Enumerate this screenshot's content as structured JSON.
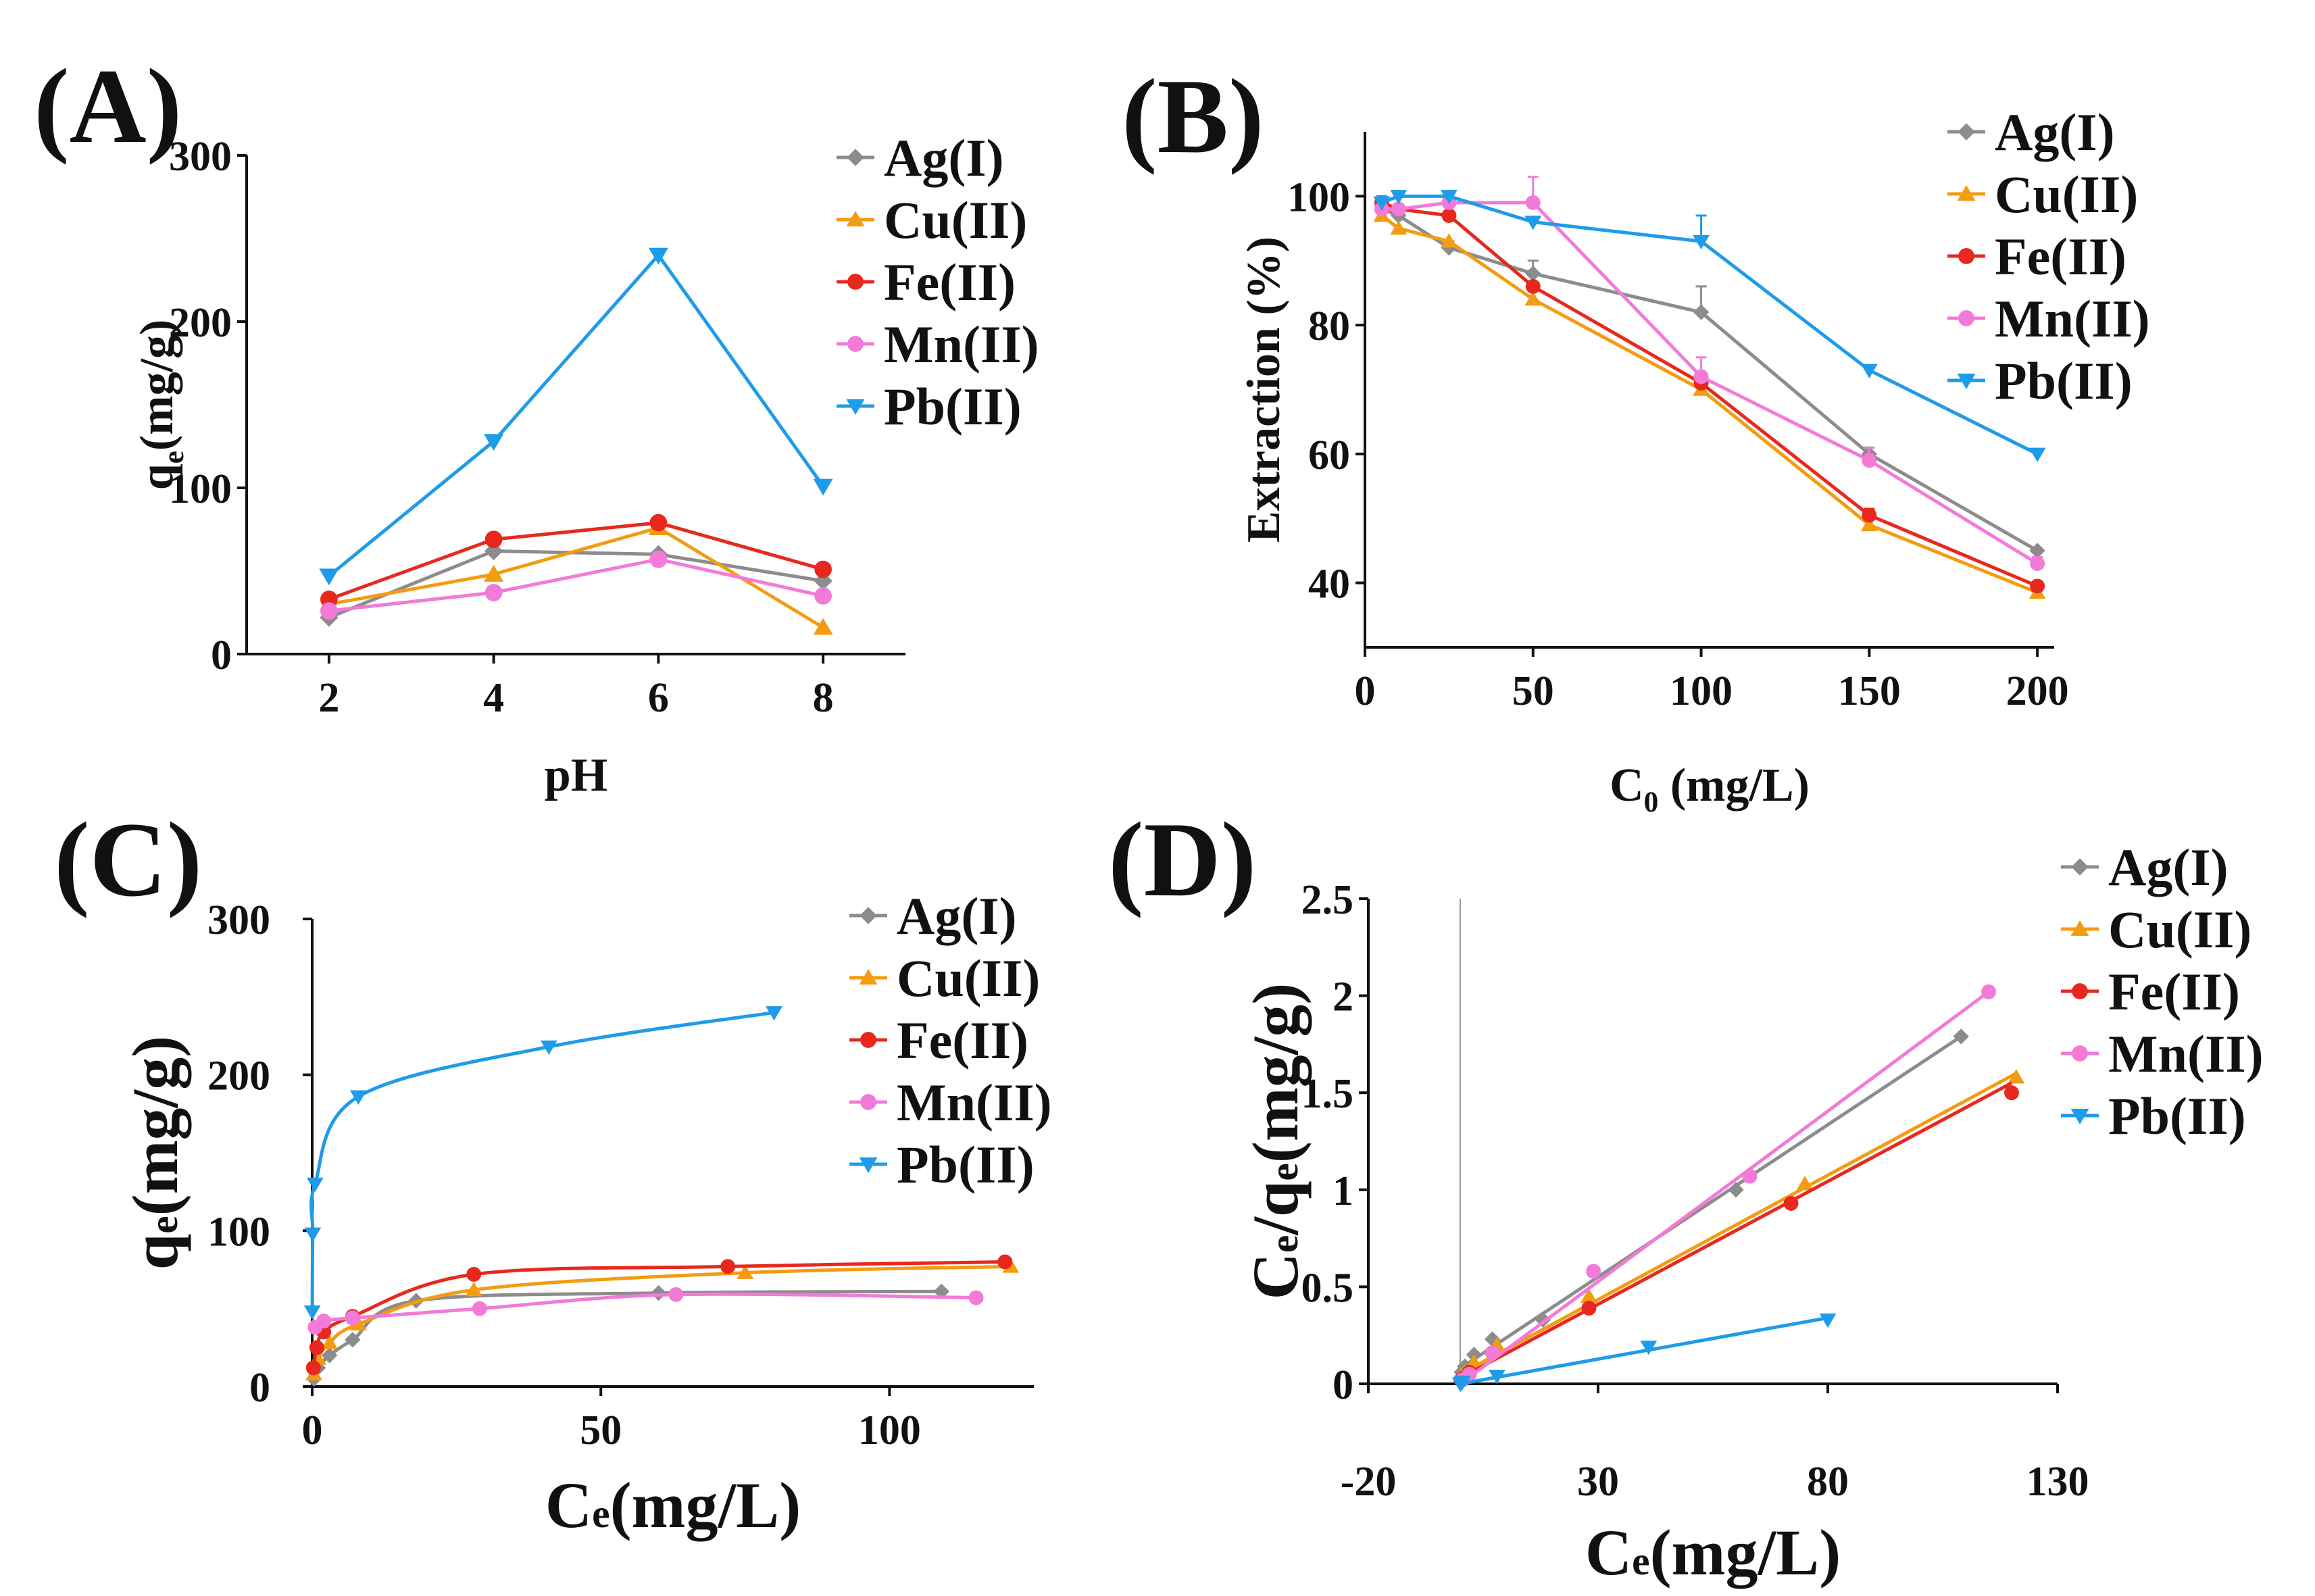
{
  "colors": {
    "Ag(I)": "#8c8c8c",
    "Cu(II)": "#f39c12",
    "Fe(II)": "#e8281e",
    "Mn(II)": "#f27ad8",
    "Pb(II)": "#1e9be9"
  },
  "chart_data": [
    {
      "id": "A",
      "panel_label": "(A)",
      "type": "line",
      "xlabel": "pH",
      "ylabel_main": "q",
      "ylabel_sub": "e",
      "ylabel_tail": "(mg/g)",
      "xlim": [
        1,
        9
      ],
      "ylim": [
        0,
        300
      ],
      "xticks": [
        2,
        4,
        6,
        8
      ],
      "yticks": [
        0,
        100,
        200,
        300
      ],
      "x": [
        2,
        4,
        6,
        8
      ],
      "legend": [
        "Ag(I)",
        "Cu(II)",
        "Fe(II)",
        "Mn(II)",
        "Pb(II)"
      ],
      "series": [
        {
          "name": "Ag(I)",
          "values": [
            22,
            62,
            60,
            44
          ]
        },
        {
          "name": "Cu(II)",
          "values": [
            30,
            48,
            76,
            16
          ]
        },
        {
          "name": "Fe(II)",
          "values": [
            33,
            69,
            79,
            51
          ]
        },
        {
          "name": "Mn(II)",
          "values": [
            26,
            37,
            57,
            35
          ]
        },
        {
          "name": "Pb(II)",
          "values": [
            47,
            128,
            240,
            101
          ]
        }
      ]
    },
    {
      "id": "B",
      "panel_label": "(B)",
      "type": "line",
      "xlabel_main": "C",
      "xlabel_sub": "0",
      "xlabel_tail": " (mg/L)",
      "ylabel": "Extraction (%)",
      "xlim": [
        0,
        205
      ],
      "ylim": [
        30,
        110
      ],
      "xticks": [
        0,
        50,
        100,
        150,
        200
      ],
      "yticks": [
        40,
        60,
        80,
        100
      ],
      "legend": [
        "Ag(I)",
        "Cu(II)",
        "Fe(II)",
        "Mn(II)",
        "Pb(II)"
      ],
      "series": [
        {
          "name": "Ag(I)",
          "x": [
            5,
            10,
            25,
            50,
            100,
            150,
            200
          ],
          "values": [
            98,
            97,
            92,
            88,
            82,
            60,
            45
          ],
          "err": [
            1,
            1,
            1,
            2,
            4,
            1,
            0
          ]
        },
        {
          "name": "Cu(II)",
          "x": [
            5,
            10,
            25,
            50,
            100,
            150,
            200
          ],
          "values": [
            97,
            95,
            93,
            84,
            70,
            49,
            38.5
          ],
          "err": [
            0,
            0,
            0,
            0,
            0,
            0,
            0
          ]
        },
        {
          "name": "Fe(II)",
          "x": [
            5,
            10,
            25,
            50,
            100,
            150,
            200
          ],
          "values": [
            99,
            98,
            97,
            86,
            71,
            50.5,
            39.5
          ],
          "err": [
            0,
            0,
            0,
            0,
            0,
            1,
            0
          ]
        },
        {
          "name": "Mn(II)",
          "x": [
            5,
            10,
            25,
            50,
            100,
            150,
            200
          ],
          "values": [
            98,
            98,
            99,
            99,
            72,
            59,
            43
          ],
          "err": [
            2,
            0,
            0,
            4,
            3,
            2,
            1
          ]
        },
        {
          "name": "Pb(II)",
          "x": [
            5,
            10,
            25,
            50,
            100,
            150,
            200
          ],
          "values": [
            99,
            100,
            100,
            96,
            93,
            73,
            60
          ],
          "err": [
            1,
            0,
            0,
            0,
            4,
            0,
            0
          ]
        }
      ]
    },
    {
      "id": "C",
      "panel_label": "(C)",
      "type": "line",
      "xlabel_main": "C",
      "xlabel_sub": "e",
      "xlabel_tail": "(mg/L)",
      "ylabel_main": "q",
      "ylabel_sub": "e",
      "ylabel_tail": "(mg/g)",
      "xlim": [
        0,
        125
      ],
      "ylim": [
        0,
        300
      ],
      "xticks": [
        0,
        50,
        100
      ],
      "yticks": [
        0,
        100,
        200,
        300
      ],
      "legend": [
        "Ag(I)",
        "Cu(II)",
        "Fe(II)",
        "Mn(II)",
        "Pb(II)"
      ],
      "series": [
        {
          "name": "Ag(I)",
          "x": [
            0.3,
            1,
            3,
            7,
            18,
            60,
            109
          ],
          "values": [
            5,
            12,
            20,
            30,
            55,
            60,
            61
          ]
        },
        {
          "name": "Cu(II)",
          "x": [
            0.3,
            1,
            3,
            8,
            28,
            75,
            121
          ],
          "values": [
            8,
            18,
            28,
            40,
            62,
            73,
            77
          ]
        },
        {
          "name": "Fe(II)",
          "x": [
            0.2,
            0.8,
            2,
            7,
            28,
            72,
            120
          ],
          "values": [
            12,
            25,
            35,
            45,
            72,
            77,
            80
          ]
        },
        {
          "name": "Mn(II)",
          "x": [
            0.5,
            2,
            7,
            29,
            63,
            115
          ],
          "values": [
            38,
            42,
            44,
            50,
            59,
            57
          ]
        },
        {
          "name": "Pb(II)",
          "x": [
            0.02,
            0.1,
            0.5,
            8,
            41,
            80
          ],
          "values": [
            48,
            98,
            130,
            186,
            218,
            240
          ]
        }
      ]
    },
    {
      "id": "D",
      "panel_label": "(D)",
      "type": "scatter",
      "xlabel_main": "C",
      "xlabel_sub": "e",
      "xlabel_tail": "(mg/L)",
      "ylabel_main1": "C",
      "ylabel_sub1": "e",
      "ylabel_mid": "/q",
      "ylabel_sub2": "e",
      "ylabel_tail": "(mg/g)",
      "xlim": [
        -20,
        130
      ],
      "ylim": [
        0,
        2.5
      ],
      "xticks": [
        -20,
        30,
        80,
        130
      ],
      "xtick_labels": [
        "-20",
        "30",
        "80",
        "130"
      ],
      "yticks": [
        0,
        0.5,
        1,
        1.5,
        2,
        2.5
      ],
      "ytick_labels": [
        "0",
        "0.5",
        "1",
        "1.5",
        "2",
        "2.5"
      ],
      "legend": [
        "Ag(I)",
        "Cu(II)",
        "Fe(II)",
        "Mn(II)",
        "Pb(II)"
      ],
      "series": [
        {
          "name": "Ag(I)",
          "x": [
            0.3,
            1,
            3,
            7,
            18,
            60,
            109
          ],
          "values": [
            0.06,
            0.09,
            0.15,
            0.23,
            0.33,
            1.0,
            1.79
          ],
          "fit": [
            [
              0,
              0.08
            ],
            [
              109,
              1.79
            ]
          ]
        },
        {
          "name": "Cu(II)",
          "x": [
            0.3,
            1,
            3,
            8,
            28,
            75,
            121
          ],
          "values": [
            0.04,
            0.06,
            0.11,
            0.2,
            0.45,
            1.03,
            1.58
          ],
          "fit": [
            [
              0,
              0.05
            ],
            [
              121,
              1.6
            ]
          ]
        },
        {
          "name": "Fe(II)",
          "x": [
            0.2,
            0.8,
            2,
            7,
            28,
            72,
            120
          ],
          "values": [
            0.02,
            0.03,
            0.06,
            0.16,
            0.39,
            0.93,
            1.5
          ],
          "fit": [
            [
              0,
              0.03
            ],
            [
              120,
              1.55
            ]
          ]
        },
        {
          "name": "Mn(II)",
          "x": [
            0.5,
            2,
            7,
            29,
            63,
            115
          ],
          "values": [
            0.02,
            0.05,
            0.16,
            0.58,
            1.07,
            2.02
          ],
          "fit": [
            [
              0,
              0.0
            ],
            [
              115,
              2.02
            ]
          ]
        },
        {
          "name": "Pb(II)",
          "x": [
            0.02,
            0.1,
            0.5,
            8,
            41,
            80
          ],
          "values": [
            0.0,
            0.0,
            0.01,
            0.04,
            0.19,
            0.33
          ],
          "fit": [
            [
              0,
              0.0
            ],
            [
              80,
              0.34
            ]
          ]
        }
      ]
    }
  ]
}
